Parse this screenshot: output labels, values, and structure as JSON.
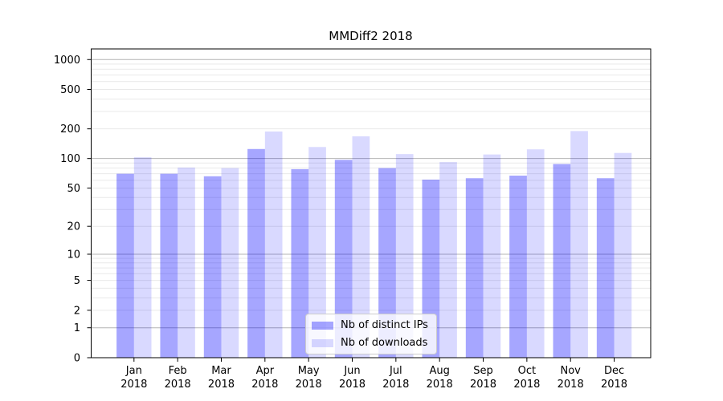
{
  "figure_title": "MMDiff2 2018",
  "chart_data": {
    "type": "bar",
    "title": "MMDiff2 2018",
    "x_tick_labels": [
      [
        "Jan",
        "2018"
      ],
      [
        "Feb",
        "2018"
      ],
      [
        "Mar",
        "2018"
      ],
      [
        "Apr",
        "2018"
      ],
      [
        "May",
        "2018"
      ],
      [
        "Jun",
        "2018"
      ],
      [
        "Jul",
        "2018"
      ],
      [
        "Aug",
        "2018"
      ],
      [
        "Sep",
        "2018"
      ],
      [
        "Oct",
        "2018"
      ],
      [
        "Nov",
        "2018"
      ],
      [
        "Dec",
        "2018"
      ]
    ],
    "series": [
      {
        "name": "Nb of distinct IPs",
        "color": "rgba(0,0,255,0.35)",
        "hex_on_white": "#a6a6ff",
        "values": [
          70,
          70,
          66,
          125,
          78,
          97,
          80,
          61,
          63,
          67,
          88,
          63
        ]
      },
      {
        "name": "Nb of downloads",
        "color": "rgba(0,0,255,0.15)",
        "hex_on_white": "#d9d9ff",
        "values": [
          103,
          81,
          80,
          188,
          131,
          168,
          111,
          92,
          110,
          124,
          190,
          114
        ]
      }
    ],
    "yscale": "log1p",
    "y_tick_values": [
      0,
      1,
      2,
      5,
      10,
      20,
      50,
      100,
      200,
      500,
      1000
    ],
    "ylim": [
      0,
      1280
    ],
    "grid": {
      "major_values": [
        1,
        10,
        100,
        1000
      ],
      "major_color": "#b4b4b4",
      "minor_color": "#e9e9e9"
    },
    "legend": {
      "position": "lower center",
      "items": [
        "Nb of distinct IPs",
        "Nb of downloads"
      ]
    },
    "frame_color": "#000000",
    "text_color": "#000000"
  }
}
